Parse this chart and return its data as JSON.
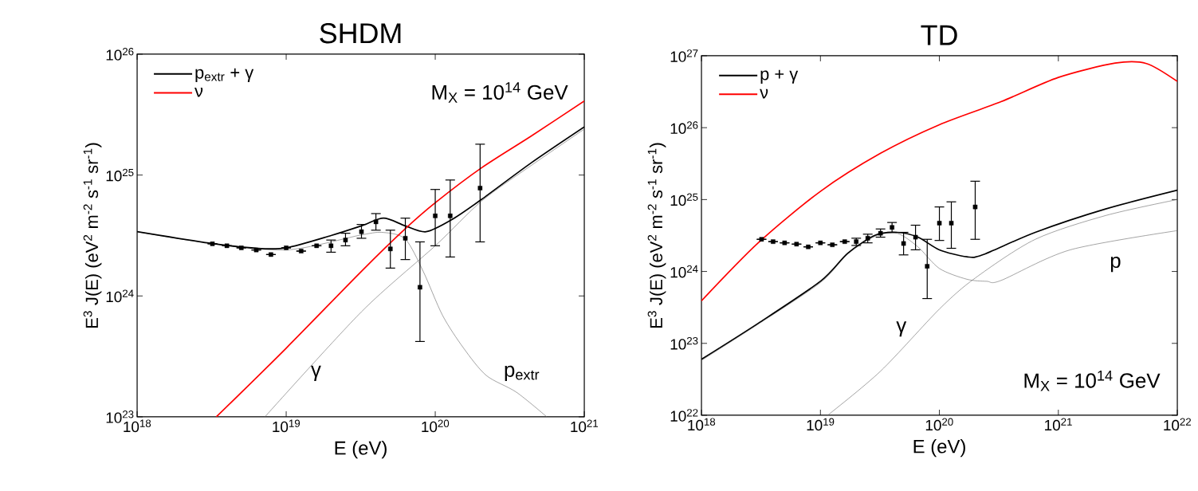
{
  "chart_data": [
    {
      "type": "line",
      "title": "SHDM",
      "xlabel": "E (eV)",
      "ylabel": "E$^{3}$ J(E) (eV$^{2}$ m$^{-2}$ s$^{-1}$ sr$^{-1}$)",
      "log": "xy",
      "legend": "top left",
      "marker": "none",
      "line_style": "solid",
      "xlim": [
        1e+18,
        1e+21
      ],
      "ylim": [
        1e+23,
        1e+26
      ],
      "xticks": [
        {
          "value": 1e+18,
          "label": "10$^{18}$"
        },
        {
          "value": 1e+19,
          "label": "10$^{19}$"
        },
        {
          "value": 1e+20,
          "label": "10$^{20}$"
        },
        {
          "value": 1e+21,
          "label": "10$^{21}$"
        }
      ],
      "yticks": [
        {
          "value": 1e+23,
          "label": "10$^{23}$"
        },
        {
          "value": 1e+24,
          "label": "10$^{24}$"
        },
        {
          "value": 1e+25,
          "label": "10$^{25}$"
        },
        {
          "value": 1e+26,
          "label": "10$^{26}$"
        }
      ],
      "series": [
        {
          "type": "line",
          "color": "#666666",
          "x": [
            1e+18,
            2.95e+18,
            1e+19,
            3.2e+19,
            4.5e+19,
            6.3e+19,
            8.3e+19,
            1.12e+20,
            1.55e+20,
            2.2e+20,
            3.5e+20,
            5.6e+20
          ],
          "values": [
            3.4e+24,
            2.75e+24,
            2.4e+24,
            3.2e+24,
            3.35e+24,
            2.95e+24,
            1.6e+24,
            6.9e+23,
            3.7e+23,
            2.2e+23,
            1.6e+23,
            1e+23
          ]
        },
        {
          "type": "line",
          "color": "#666666",
          "x": [
            7.2e+18,
            3.2e+19,
            1e+20,
            2.05e+20,
            4.4e+20,
            1e+21
          ],
          "values": [
            1e+23,
            7.4e+23,
            2.6e+24,
            6.1e+24,
            1.2e+25,
            2.4e+25
          ]
        },
        {
          "type": "line",
          "name": "p$_{extr}$ + γ",
          "color": "#000000",
          "x": [
            1e+18,
            2.95e+18,
            6.3e+18,
            1e+19,
            2e+19,
            3.2e+19,
            4.5e+19,
            6.3e+19,
            8.7e+19,
            1.3e+20,
            2.05e+20,
            4.4e+20,
            1e+21
          ],
          "values": [
            3.4e+24,
            2.75e+24,
            2.48e+24,
            2.5e+24,
            3.16e+24,
            3.8e+24,
            4.4e+24,
            3.8e+24,
            3.4e+24,
            4.3e+24,
            6.3e+24,
            1.26e+25,
            2.5e+25
          ]
        },
        {
          "name": "ν",
          "color": "#ff0000",
          "x": [
            3.4e+18,
            1e+19,
            3.2e+19,
            6.3e+19,
            1e+20,
            2.05e+20,
            4.4e+20,
            1e+21
          ],
          "values": [
            1e+23,
            3.7e+23,
            1.6e+24,
            3.6e+24,
            5.9e+24,
            1.15e+25,
            2.1e+25,
            4.1e+25
          ]
        },
        {
          "type": "scatter",
          "color": "#000000",
          "marker": "square",
          "x": [
            3.2e+18,
            4e+18,
            5e+18,
            6.3e+18,
            7.9e+18,
            1e+19,
            1.26e+19,
            1.6e+19,
            2e+19,
            2.5e+19,
            3.2e+19,
            4e+19,
            5e+19,
            6.3e+19,
            7.9e+19,
            1e+20,
            1.26e+20,
            2e+20
          ],
          "values": [
            2.7e+24,
            2.6e+24,
            2.5e+24,
            2.4e+24,
            2.2e+24,
            2.5e+24,
            2.35e+24,
            2.6e+24,
            2.6e+24,
            2.9e+24,
            3.4e+24,
            4.1e+24,
            2.45e+24,
            3e+24,
            1.18e+24,
            4.6e+24,
            4.6e+24,
            7.8e+24
          ],
          "errors": [
            null,
            null,
            null,
            null,
            null,
            null,
            null,
            null,
            [
              2.3e+24,
              2.9e+24
            ],
            [
              2.6e+24,
              3.3e+24
            ],
            [
              3e+24,
              3.9e+24
            ],
            [
              3.5e+24,
              4.8e+24
            ],
            [
              1.7e+24,
              3.5e+24
            ],
            [
              2e+24,
              4.4e+24
            ],
            [
              4.2e+23,
              2.8e+24
            ],
            [
              2.6e+24,
              7.6e+24
            ],
            [
              2.1e+24,
              9.1e+24
            ],
            [
              2.8e+24,
              1.8e+25
            ]
          ]
        }
      ],
      "annotations": [
        "M$_{X}$ = 10$^{14}$ GeV",
        "γ",
        "p$_{extr}$"
      ]
    },
    {
      "type": "line",
      "title": "TD",
      "xlabel": "E (eV)",
      "ylabel": "E$^{3}$ J(E) (eV$^{2}$ m$^{-2}$ s$^{-1}$ sr$^{-1}$)",
      "log": "xy",
      "legend": "top left",
      "marker": "none",
      "line_style": "solid",
      "xlim": [
        1e+18,
        1e+22
      ],
      "ylim": [
        1e+22,
        1e+27
      ],
      "xticks": [
        {
          "value": 1e+18,
          "label": "10$^{18}$"
        },
        {
          "value": 1e+19,
          "label": "10$^{19}$"
        },
        {
          "value": 1e+20,
          "label": "10$^{20}$"
        },
        {
          "value": 1e+21,
          "label": "10$^{21}$"
        },
        {
          "value": 1e+22,
          "label": "10$^{22}$"
        }
      ],
      "yticks": [
        {
          "value": 1e+22,
          "label": "10$^{22}$"
        },
        {
          "value": 1e+23,
          "label": "10$^{23}$"
        },
        {
          "value": 1e+24,
          "label": "10$^{24}$"
        },
        {
          "value": 1e+25,
          "label": "10$^{25}$"
        },
        {
          "value": 1e+26,
          "label": "10$^{26}$"
        },
        {
          "value": 1e+27,
          "label": "10$^{27}$"
        }
      ],
      "series": [
        {
          "type": "line",
          "color": "#666666",
          "x": [
            1e+18,
            3e+18,
            1e+19,
            1.7e+19,
            2.9e+19,
            4.4e+19,
            6.6e+19,
            1e+20,
            1.7e+20,
            2.5e+20,
            3.3e+20,
            1.26e+21,
            1e+22
          ],
          "values": [
            5.8e+22,
            1.85e+23,
            7e+23,
            1.75e+24,
            3.1e+24,
            3.4e+24,
            2.2e+24,
            1.1e+24,
            7.8e+23,
            7.3e+23,
            7.5e+23,
            2e+24,
            3.7e+24
          ]
        },
        {
          "type": "line",
          "color": "#666666",
          "x": [
            1.15e+19,
            3.2e+19,
            1e+20,
            2e+20,
            6.4e+20,
            2.5e+21,
            1e+22
          ],
          "values": [
            1e+22,
            4.1e+22,
            3e+23,
            8.1e+23,
            2.8e+24,
            6e+24,
            1e+25
          ]
        },
        {
          "type": "line",
          "name": "p + γ",
          "color": "#000000",
          "x": [
            1e+18,
            3e+18,
            1e+19,
            1.7e+19,
            2.9e+19,
            4.4e+19,
            6.6e+19,
            1e+20,
            1.7e+20,
            2.3e+20,
            6.4e+20,
            2.5e+21,
            1e+22
          ],
          "values": [
            6e+22,
            1.9e+23,
            7.3e+23,
            1.8e+24,
            3.2e+24,
            3.5e+24,
            3e+24,
            2e+24,
            1.6e+24,
            1.7e+24,
            3.5e+24,
            7.4e+24,
            1.35e+25
          ]
        },
        {
          "type": "line",
          "name": "ν",
          "color": "#ff0000",
          "x": [
            1e+18,
            3e+18,
            1e+19,
            3.2e+19,
            1e+20,
            3.3e+20,
            1e+21,
            3e+21,
            5.5e+21,
            1e+22
          ],
          "values": [
            3.9e+23,
            2.5e+24,
            1.3e+25,
            4.4e+25,
            1.1e+26,
            2.3e+26,
            5e+26,
            7.9e+26,
            7.8e+26,
            4.4e+26
          ]
        },
        {
          "type": "scatter",
          "color": "#000000",
          "marker": "square",
          "x": [
            3.2e+18,
            4e+18,
            5e+18,
            6.3e+18,
            7.9e+18,
            1e+19,
            1.26e+19,
            1.6e+19,
            2e+19,
            2.5e+19,
            3.2e+19,
            4e+19,
            5e+19,
            6.3e+19,
            7.9e+19,
            1e+20,
            1.26e+20,
            2e+20
          ],
          "values": [
            2.8e+24,
            2.6e+24,
            2.5e+24,
            2.4e+24,
            2.2e+24,
            2.5e+24,
            2.35e+24,
            2.6e+24,
            2.6e+24,
            2.9e+24,
            3.4e+24,
            4.1e+24,
            2.45e+24,
            3e+24,
            1.18e+24,
            4.7e+24,
            4.7e+24,
            7.9e+24
          ],
          "errors": [
            null,
            null,
            null,
            null,
            null,
            null,
            null,
            null,
            [
              2.3e+24,
              2.9e+24
            ],
            [
              2.5e+24,
              3.3e+24
            ],
            [
              3e+24,
              3.9e+24
            ],
            [
              3.5e+24,
              4.8e+24
            ],
            [
              1.7e+24,
              3.5e+24
            ],
            [
              2e+24,
              4.4e+24
            ],
            [
              4.2e+23,
              2.8e+24
            ],
            [
              2.7e+24,
              7.9e+24
            ],
            [
              2.1e+24,
              9.3e+24
            ],
            [
              2.8e+24,
              1.8e+25
            ]
          ]
        }
      ],
      "annotations": [
        "M$_{X}$ = 10$^{14}$ GeV",
        "γ",
        "p"
      ]
    }
  ]
}
